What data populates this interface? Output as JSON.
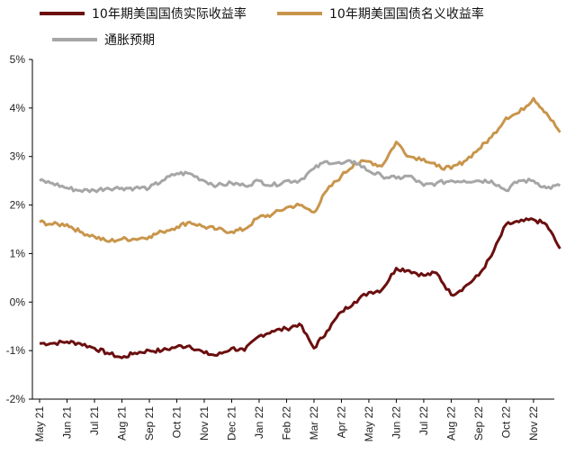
{
  "chart_data": {
    "type": "line",
    "title": "",
    "xlabel": "",
    "ylabel": "",
    "ylim": [
      -2,
      5
    ],
    "yticks": [
      "-2%",
      "-1%",
      "0%",
      "1%",
      "2%",
      "3%",
      "4%",
      "5%"
    ],
    "x_ticks": [
      "May 21",
      "Jun 21",
      "Jul 21",
      "Aug 21",
      "Sep 21",
      "Oct 21",
      "Nov 21",
      "Dec 21",
      "Jan 22",
      "Feb 22",
      "Mar 22",
      "Apr 22",
      "May 22",
      "Jun 22",
      "Jul 22",
      "Aug 22",
      "Sep 22",
      "Oct 22",
      "Nov 22"
    ],
    "legend_position": "top",
    "x": [
      "2021-05",
      "2021-05-15",
      "2021-06",
      "2021-06-15",
      "2021-07",
      "2021-07-15",
      "2021-08",
      "2021-08-15",
      "2021-09",
      "2021-09-15",
      "2021-10",
      "2021-10-15",
      "2021-11",
      "2021-11-15",
      "2021-12",
      "2021-12-15",
      "2022-01",
      "2022-01-15",
      "2022-02",
      "2022-02-15",
      "2022-03",
      "2022-03-15",
      "2022-04",
      "2022-04-15",
      "2022-05",
      "2022-05-15",
      "2022-06",
      "2022-06-15",
      "2022-07",
      "2022-07-15",
      "2022-08",
      "2022-08-15",
      "2022-09",
      "2022-09-15",
      "2022-10",
      "2022-10-15",
      "2022-11",
      "2022-11-15",
      "2022-11-30"
    ],
    "series": [
      {
        "name": "10年期美国国债实际收益率",
        "color": "#6b0f0f",
        "values": [
          -0.85,
          -0.85,
          -0.82,
          -0.85,
          -0.95,
          -1.05,
          -1.15,
          -1.05,
          -1.0,
          -1.0,
          -0.92,
          -0.9,
          -1.05,
          -1.1,
          -0.95,
          -1.0,
          -0.7,
          -0.6,
          -0.55,
          -0.45,
          -0.95,
          -0.6,
          -0.2,
          0.0,
          0.2,
          0.25,
          0.7,
          0.65,
          0.55,
          0.6,
          0.15,
          0.3,
          0.55,
          0.95,
          1.6,
          1.65,
          1.7,
          1.6,
          1.1
        ]
      },
      {
        "name": "10年期美国国债名义收益率",
        "color": "#c8954b",
        "values": [
          1.65,
          1.6,
          1.6,
          1.45,
          1.35,
          1.25,
          1.3,
          1.3,
          1.35,
          1.45,
          1.55,
          1.65,
          1.55,
          1.5,
          1.45,
          1.5,
          1.75,
          1.8,
          1.95,
          2.0,
          1.85,
          2.3,
          2.6,
          2.85,
          2.9,
          2.8,
          3.3,
          3.0,
          2.95,
          2.8,
          2.75,
          2.9,
          3.15,
          3.4,
          3.8,
          3.9,
          4.2,
          3.9,
          3.5
        ]
      },
      {
        "name": "通胀预期",
        "color": "#a6a6a6",
        "values": [
          2.5,
          2.45,
          2.35,
          2.3,
          2.3,
          2.35,
          2.35,
          2.35,
          2.35,
          2.5,
          2.65,
          2.65,
          2.5,
          2.4,
          2.45,
          2.4,
          2.5,
          2.4,
          2.5,
          2.5,
          2.75,
          2.9,
          2.85,
          2.9,
          2.7,
          2.6,
          2.55,
          2.6,
          2.4,
          2.45,
          2.5,
          2.5,
          2.5,
          2.5,
          2.3,
          2.5,
          2.5,
          2.35,
          2.4
        ]
      }
    ]
  }
}
